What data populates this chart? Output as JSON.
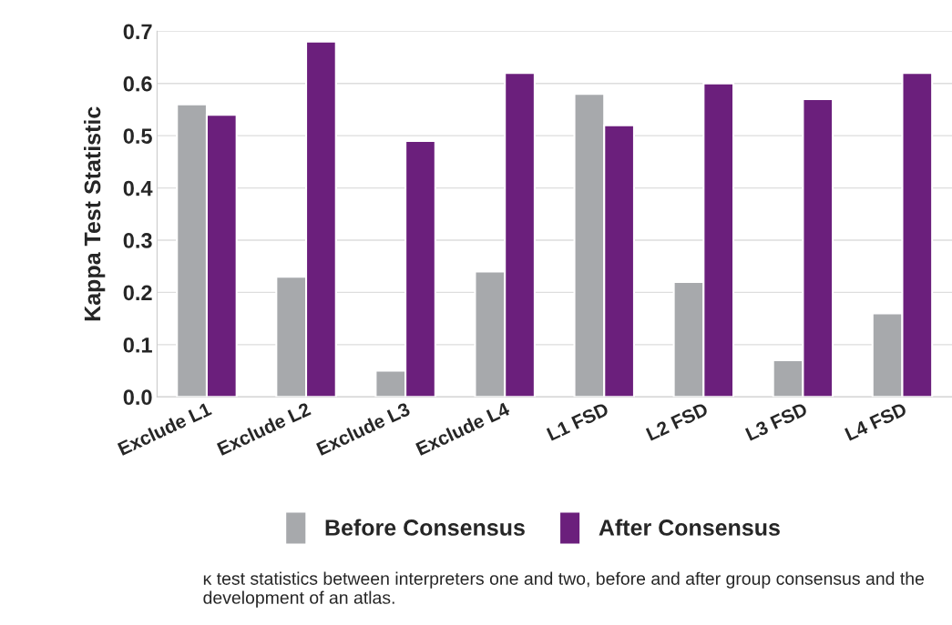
{
  "chart_data": {
    "type": "bar",
    "ylabel": "Kappa Test Statistic",
    "categories": [
      "Exclude L1",
      "Exclude L2",
      "Exclude L3",
      "Exclude L4",
      "L1 FSD",
      "L2 FSD",
      "L3 FSD",
      "L4 FSD"
    ],
    "series": [
      {
        "name": "Before Consensus",
        "color": "#a7a9ac",
        "values": [
          0.56,
          0.23,
          0.05,
          0.24,
          0.58,
          0.22,
          0.07,
          0.16
        ]
      },
      {
        "name": "After Consensus",
        "color": "#6b1f7c",
        "values": [
          0.54,
          0.68,
          0.49,
          0.62,
          0.52,
          0.6,
          0.57,
          0.62
        ]
      }
    ],
    "ylim": [
      0,
      0.7
    ],
    "yticks": [
      {
        "value": 0,
        "label": "0.0"
      },
      0.1,
      0.2,
      0.3,
      0.4,
      0.5,
      0.6,
      0.7
    ],
    "grid": "y",
    "legend": "bottom",
    "annotations": [
      "κ test statistics between interpreters one and two, before and after group consensus and the development of an atlas."
    ]
  }
}
